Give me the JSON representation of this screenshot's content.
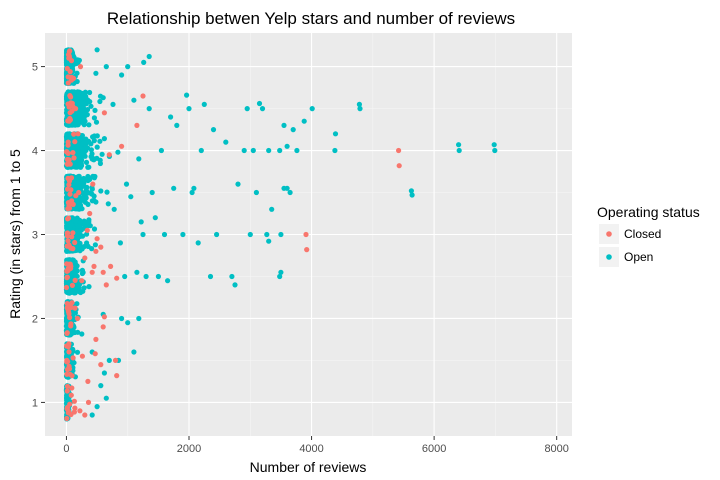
{
  "chart_data": {
    "type": "scatter",
    "title": "Relationship betwen Yelp stars and number of reviews",
    "xlabel": "Number of reviews",
    "ylabel": "Rating (in stars) from 1 to 5",
    "xlim": [
      -350,
      8250
    ],
    "ylim": [
      0.6,
      5.4
    ],
    "x_ticks": [
      0,
      2000,
      4000,
      6000,
      8000
    ],
    "y_ticks": [
      1,
      2,
      3,
      4,
      5
    ],
    "grid": true,
    "jitter": 0.2,
    "legend": {
      "title": "Operating status",
      "placement": "right",
      "entries": [
        {
          "label": "Closed",
          "color": "#F8766D"
        },
        {
          "label": "Open",
          "color": "#00BFC4"
        }
      ]
    },
    "series": [
      {
        "name": "Closed",
        "color": "#F8766D",
        "points": [
          [
            5420,
            4.0
          ],
          [
            5430,
            3.82
          ],
          [
            3910,
            3.0
          ],
          [
            3920,
            2.82
          ],
          [
            1250,
            4.65
          ],
          [
            1150,
            4.3
          ],
          [
            900,
            4.05
          ],
          [
            700,
            3.95
          ],
          [
            620,
            4.45
          ],
          [
            430,
            3.6
          ],
          [
            380,
            3.25
          ],
          [
            340,
            3.05
          ],
          [
            500,
            2.95
          ],
          [
            480,
            2.8
          ],
          [
            450,
            2.62
          ],
          [
            560,
            2.85
          ],
          [
            300,
            2.72
          ],
          [
            250,
            2.45
          ],
          [
            420,
            2.55
          ],
          [
            600,
            2.55
          ],
          [
            650,
            2.4
          ],
          [
            720,
            2.62
          ],
          [
            820,
            2.48
          ],
          [
            620,
            2.02
          ],
          [
            600,
            1.9
          ],
          [
            480,
            1.75
          ],
          [
            800,
            1.5
          ],
          [
            820,
            1.32
          ],
          [
            560,
            1.45
          ],
          [
            470,
            1.58
          ],
          [
            350,
            1.25
          ],
          [
            300,
            0.85
          ],
          [
            360,
            1.0
          ],
          [
            220,
            0.9
          ],
          [
            150,
            4.5
          ],
          [
            200,
            3.5
          ],
          [
            180,
            2.0
          ],
          [
            260,
            1.55
          ],
          [
            190,
            4.2
          ],
          [
            230,
            5.0
          ]
        ]
      },
      {
        "name": "Open",
        "color": "#00BFC4",
        "points": [
          [
            6980,
            4.07
          ],
          [
            6990,
            4.0
          ],
          [
            6400,
            4.07
          ],
          [
            6410,
            4.0
          ],
          [
            5630,
            3.52
          ],
          [
            5640,
            3.47
          ],
          [
            4780,
            4.55
          ],
          [
            4790,
            4.5
          ],
          [
            4380,
            4.0
          ],
          [
            4390,
            4.2
          ],
          [
            4010,
            4.5
          ],
          [
            3880,
            4.35
          ],
          [
            3760,
            4.0
          ],
          [
            3700,
            4.25
          ],
          [
            3550,
            4.3
          ],
          [
            3600,
            4.05
          ],
          [
            3480,
            4.0
          ],
          [
            3200,
            4.5
          ],
          [
            3150,
            4.56
          ],
          [
            3300,
            4.0
          ],
          [
            3050,
            4.0
          ],
          [
            3100,
            3.5
          ],
          [
            3350,
            3.3
          ],
          [
            3550,
            3.55
          ],
          [
            3600,
            3.55
          ],
          [
            3650,
            3.5
          ],
          [
            3500,
            3.0
          ],
          [
            3270,
            3.0
          ],
          [
            3300,
            2.92
          ],
          [
            3000,
            3.0
          ],
          [
            3480,
            2.5
          ],
          [
            3500,
            2.55
          ],
          [
            2700,
            2.5
          ],
          [
            2450,
            3.0
          ],
          [
            2800,
            3.6
          ],
          [
            2900,
            4.0
          ],
          [
            2950,
            4.5
          ],
          [
            2600,
            4.1
          ],
          [
            2400,
            4.25
          ],
          [
            2250,
            4.55
          ],
          [
            2200,
            4.0
          ],
          [
            2050,
            3.5
          ],
          [
            2000,
            4.5
          ],
          [
            1960,
            4.66
          ],
          [
            1800,
            4.3
          ],
          [
            1750,
            3.55
          ],
          [
            1600,
            3.0
          ],
          [
            1500,
            2.5
          ],
          [
            1300,
            2.5
          ],
          [
            1400,
            3.5
          ],
          [
            1350,
            4.5
          ],
          [
            1550,
            4.0
          ],
          [
            2350,
            2.5
          ],
          [
            2150,
            2.9
          ],
          [
            2750,
            2.4
          ],
          [
            2080,
            3.55
          ],
          [
            1650,
            2.45
          ],
          [
            1900,
            3.0
          ],
          [
            1700,
            4.4
          ],
          [
            1450,
            3.2
          ],
          [
            1250,
            3.0
          ],
          [
            1150,
            2.55
          ],
          [
            1100,
            4.6
          ],
          [
            1050,
            3.45
          ],
          [
            900,
            2.0
          ],
          [
            1000,
            1.95
          ],
          [
            950,
            2.5
          ],
          [
            850,
            1.5
          ],
          [
            700,
            1.5
          ],
          [
            650,
            1.05
          ],
          [
            600,
            2.05
          ],
          [
            620,
            1.35
          ],
          [
            1000,
            5.0
          ],
          [
            1260,
            5.05
          ],
          [
            1350,
            5.12
          ],
          [
            900,
            4.9
          ],
          [
            650,
            5.0
          ],
          [
            500,
            5.2
          ],
          [
            480,
            4.92
          ],
          [
            760,
            4.55
          ],
          [
            840,
            3.98
          ],
          [
            980,
            3.6
          ],
          [
            1180,
            3.9
          ],
          [
            1220,
            3.15
          ],
          [
            780,
            3.3
          ],
          [
            880,
            2.9
          ],
          [
            1180,
            2.0
          ],
          [
            560,
            1.2
          ],
          [
            420,
            1.6
          ],
          [
            500,
            0.95
          ],
          [
            420,
            0.85
          ],
          [
            1100,
            1.6
          ]
        ]
      }
    ]
  }
}
